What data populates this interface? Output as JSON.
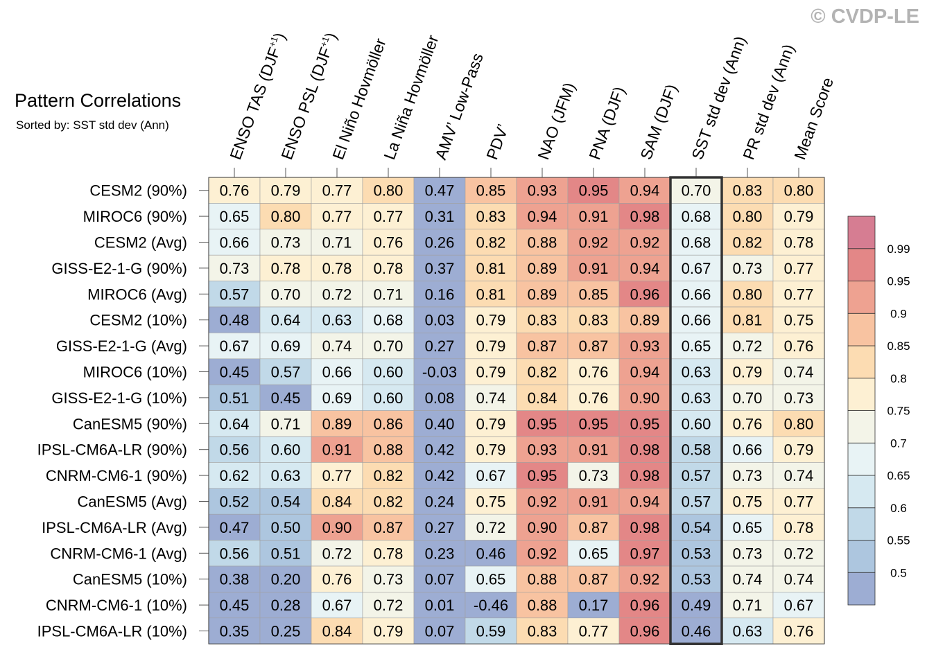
{
  "watermark": "© CVDP-LE",
  "chart_data": {
    "type": "heatmap",
    "title": "Pattern Correlations",
    "subtitle": "Sorted by: SST std dev (Ann)",
    "highlighted_column": "SST std dev (Ann)",
    "columns": [
      {
        "base": "ENSO TAS (DJF",
        "sup": "+1",
        "tail": ")"
      },
      {
        "base": "ENSO PSL (DJF",
        "sup": "+1",
        "tail": ")"
      },
      {
        "base": "El Niño Hovmöller",
        "sup": "",
        "tail": ""
      },
      {
        "base": "La Niña Hovmöller",
        "sup": "",
        "tail": ""
      },
      {
        "base": "AMV’ Low-Pass",
        "sup": "",
        "tail": ""
      },
      {
        "base": "PDV’",
        "sup": "",
        "tail": ""
      },
      {
        "base": "NAO (JFM)",
        "sup": "",
        "tail": ""
      },
      {
        "base": "PNA (DJF)",
        "sup": "",
        "tail": ""
      },
      {
        "base": "SAM (DJF)",
        "sup": "",
        "tail": ""
      },
      {
        "base": "SST std dev (Ann)",
        "sup": "",
        "tail": ""
      },
      {
        "base": "PR std dev (Ann)",
        "sup": "",
        "tail": ""
      },
      {
        "base": "Mean Score",
        "sup": "",
        "tail": ""
      }
    ],
    "rows": [
      "CESM2 (90%)",
      "MIROC6 (90%)",
      "CESM2 (Avg)",
      "GISS-E2-1-G (90%)",
      "MIROC6 (Avg)",
      "CESM2 (10%)",
      "GISS-E2-1-G (Avg)",
      "MIROC6 (10%)",
      "GISS-E2-1-G (10%)",
      "CanESM5 (90%)",
      "IPSL-CM6A-LR (90%)",
      "CNRM-CM6-1 (90%)",
      "CanESM5 (Avg)",
      "IPSL-CM6A-LR (Avg)",
      "CNRM-CM6-1 (Avg)",
      "CanESM5 (10%)",
      "CNRM-CM6-1 (10%)",
      "IPSL-CM6A-LR (10%)"
    ],
    "values": [
      [
        0.76,
        0.79,
        0.77,
        0.8,
        0.47,
        0.85,
        0.93,
        0.95,
        0.94,
        0.7,
        0.83,
        0.8
      ],
      [
        0.65,
        0.8,
        0.77,
        0.77,
        0.31,
        0.83,
        0.94,
        0.91,
        0.98,
        0.68,
        0.8,
        0.79
      ],
      [
        0.66,
        0.73,
        0.71,
        0.76,
        0.26,
        0.82,
        0.88,
        0.92,
        0.92,
        0.68,
        0.82,
        0.78
      ],
      [
        0.73,
        0.78,
        0.78,
        0.78,
        0.37,
        0.81,
        0.89,
        0.91,
        0.94,
        0.67,
        0.73,
        0.77
      ],
      [
        0.57,
        0.7,
        0.72,
        0.71,
        0.16,
        0.81,
        0.89,
        0.85,
        0.96,
        0.66,
        0.8,
        0.77
      ],
      [
        0.48,
        0.64,
        0.63,
        0.68,
        0.03,
        0.79,
        0.83,
        0.83,
        0.89,
        0.66,
        0.81,
        0.75
      ],
      [
        0.67,
        0.69,
        0.74,
        0.7,
        0.27,
        0.79,
        0.87,
        0.87,
        0.93,
        0.65,
        0.72,
        0.76
      ],
      [
        0.45,
        0.57,
        0.66,
        0.6,
        -0.03,
        0.79,
        0.82,
        0.76,
        0.94,
        0.63,
        0.79,
        0.74
      ],
      [
        0.51,
        0.45,
        0.69,
        0.6,
        0.08,
        0.74,
        0.84,
        0.76,
        0.9,
        0.63,
        0.7,
        0.73
      ],
      [
        0.64,
        0.71,
        0.89,
        0.86,
        0.4,
        0.79,
        0.95,
        0.95,
        0.95,
        0.6,
        0.76,
        0.8
      ],
      [
        0.56,
        0.6,
        0.91,
        0.88,
        0.42,
        0.79,
        0.93,
        0.91,
        0.98,
        0.58,
        0.66,
        0.79
      ],
      [
        0.62,
        0.63,
        0.77,
        0.82,
        0.42,
        0.67,
        0.95,
        0.73,
        0.98,
        0.57,
        0.73,
        0.74
      ],
      [
        0.52,
        0.54,
        0.84,
        0.82,
        0.24,
        0.75,
        0.92,
        0.91,
        0.94,
        0.57,
        0.75,
        0.77
      ],
      [
        0.47,
        0.5,
        0.9,
        0.87,
        0.27,
        0.72,
        0.9,
        0.87,
        0.98,
        0.54,
        0.65,
        0.78
      ],
      [
        0.56,
        0.51,
        0.72,
        0.78,
        0.23,
        0.46,
        0.92,
        0.65,
        0.97,
        0.53,
        0.73,
        0.72
      ],
      [
        0.38,
        0.2,
        0.76,
        0.73,
        0.07,
        0.65,
        0.88,
        0.87,
        0.92,
        0.53,
        0.74,
        0.74
      ],
      [
        0.45,
        0.28,
        0.67,
        0.72,
        0.01,
        -0.46,
        0.88,
        0.17,
        0.96,
        0.49,
        0.71,
        0.67
      ],
      [
        0.35,
        0.25,
        0.84,
        0.79,
        0.07,
        0.59,
        0.83,
        0.77,
        0.96,
        0.46,
        0.63,
        0.76
      ]
    ],
    "colorbar": {
      "ticks": [
        "0.5",
        "0.55",
        "0.6",
        "0.65",
        "0.7",
        "0.75",
        "0.8",
        "0.85",
        "0.9",
        "0.95",
        "0.99"
      ],
      "thresholds": [
        0.5,
        0.55,
        0.6,
        0.65,
        0.7,
        0.75,
        0.8,
        0.85,
        0.9,
        0.95,
        0.99
      ],
      "colors": [
        "#9dadd3",
        "#adc6df",
        "#c1d9e8",
        "#d6e9f1",
        "#e8f3f5",
        "#f3f4e8",
        "#fdf0d3",
        "#fcdcb2",
        "#f8c3a1",
        "#eea291",
        "#e38787",
        "#d67d92"
      ]
    }
  }
}
